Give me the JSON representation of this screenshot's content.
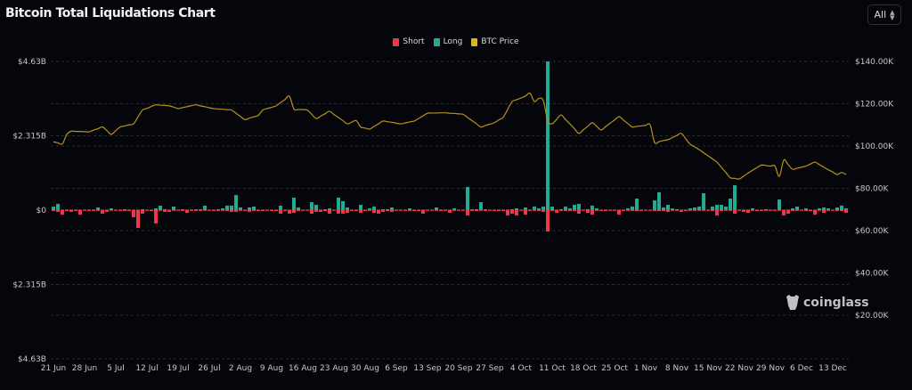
{
  "title": "Bitcoin Total Liquidations Chart",
  "range_select": {
    "value": "All"
  },
  "watermark": "coinglass",
  "colors": {
    "short": "#f23645",
    "long": "#22ab94",
    "price": "#b8921a",
    "background": "#05060b",
    "grid": "#2a2c33"
  },
  "legend": [
    {
      "label": "Short",
      "color": "#f23645"
    },
    {
      "label": "Long",
      "color": "#22ab94"
    },
    {
      "label": "BTC Price",
      "color": "#e6b10c"
    }
  ],
  "chart_data": {
    "type": "bar",
    "title": "Bitcoin Total Liquidations Chart",
    "x_tick_labels": [
      "21 Jun",
      "28 Jun",
      "5 Jul",
      "12 Jul",
      "19 Jul",
      "26 Jul",
      "2 Aug",
      "9 Aug",
      "16 Aug",
      "23 Aug",
      "30 Aug",
      "6 Sep",
      "13 Sep",
      "20 Sep",
      "27 Sep",
      "4 Oct",
      "11 Oct",
      "18 Oct",
      "25 Oct",
      "1 Nov",
      "8 Nov",
      "15 Nov",
      "22 Nov",
      "29 Nov",
      "6 Dec",
      "13 Dec"
    ],
    "left_axis": {
      "ticks": [
        "$4.63B",
        "$2.315B",
        "$0",
        "$2.315B",
        "$4.63B"
      ],
      "range": [
        -4630,
        4630
      ]
    },
    "right_axis": {
      "ticks": [
        "$140.00K",
        "$120.00K",
        "$100.00K",
        "$80.00K",
        "$60.00K",
        "$40.00K",
        "$20.00K"
      ],
      "range": [
        20,
        140
      ]
    },
    "grid": true,
    "legend_position": "top-center",
    "series": [
      {
        "name": "Long",
        "type": "bar",
        "values": [
          110,
          195,
          15,
          15,
          15,
          15,
          15,
          15,
          15,
          15,
          83,
          15,
          15,
          55,
          15,
          15,
          28,
          15,
          15,
          15,
          28,
          15,
          15,
          55,
          140,
          28,
          15,
          110,
          15,
          28,
          15,
          15,
          28,
          28,
          140,
          15,
          15,
          28,
          55,
          140,
          140,
          470,
          83,
          15,
          83,
          110,
          15,
          15,
          15,
          15,
          15,
          140,
          15,
          15,
          390,
          83,
          15,
          15,
          250,
          165,
          15,
          28,
          55,
          15,
          390,
          280,
          83,
          15,
          15,
          165,
          15,
          55,
          110,
          15,
          28,
          28,
          83,
          15,
          15,
          15,
          55,
          15,
          15,
          15,
          15,
          15,
          83,
          15,
          15,
          15,
          55,
          15,
          15,
          720,
          28,
          28,
          250,
          28,
          15,
          15,
          15,
          15,
          15,
          28,
          55,
          15,
          83,
          15,
          110,
          55,
          110,
          4630,
          110,
          15,
          28,
          110,
          55,
          165,
          195,
          15,
          28,
          140,
          55,
          15,
          15,
          15,
          15,
          15,
          15,
          55,
          110,
          360,
          15,
          15,
          15,
          305,
          555,
          83,
          165,
          55,
          28,
          15,
          15,
          55,
          83,
          110,
          525,
          15,
          110,
          165,
          165,
          110,
          360,
          775,
          15,
          15,
          15,
          55,
          15,
          15,
          28,
          15,
          15,
          330,
          15,
          15,
          55,
          110,
          15,
          55,
          15,
          15,
          55,
          83,
          55,
          15,
          83,
          140,
          55
        ]
      },
      {
        "name": "Short",
        "type": "bar",
        "values": [
          28,
          55,
          140,
          28,
          55,
          28,
          140,
          15,
          28,
          28,
          15,
          110,
          55,
          15,
          15,
          28,
          15,
          28,
          220,
          555,
          110,
          15,
          28,
          415,
          15,
          55,
          55,
          15,
          15,
          15,
          83,
          28,
          15,
          15,
          15,
          15,
          28,
          15,
          15,
          28,
          55,
          55,
          15,
          28,
          55,
          28,
          28,
          28,
          15,
          28,
          28,
          110,
          28,
          110,
          83,
          28,
          15,
          15,
          110,
          55,
          55,
          28,
          110,
          15,
          110,
          110,
          83,
          28,
          28,
          83,
          28,
          15,
          83,
          110,
          55,
          28,
          55,
          15,
          15,
          28,
          28,
          28,
          28,
          110,
          15,
          15,
          15,
          28,
          28,
          83,
          15,
          15,
          15,
          165,
          15,
          28,
          15,
          15,
          15,
          28,
          28,
          28,
          165,
          110,
          165,
          15,
          140,
          28,
          15,
          28,
          55,
          665,
          28,
          83,
          15,
          28,
          28,
          28,
          110,
          15,
          83,
          140,
          15,
          28,
          28,
          15,
          15,
          140,
          28,
          15,
          15,
          28,
          28,
          15,
          15,
          28,
          28,
          28,
          55,
          15,
          15,
          55,
          28,
          15,
          15,
          15,
          15,
          15,
          28,
          165,
          28,
          15,
          15,
          110,
          15,
          55,
          83,
          15,
          28,
          28,
          15,
          15,
          15,
          15,
          165,
          110,
          28,
          15,
          15,
          28,
          28,
          140,
          15,
          83,
          15,
          15,
          28,
          28,
          83
        ]
      },
      {
        "name": "BTC Price",
        "type": "line",
        "values": [
          102,
          101.5,
          101,
          105.5,
          107,
          106.9,
          106.9,
          106.8,
          106.7,
          107.5,
          108.2,
          109,
          107.3,
          105.5,
          107.3,
          109,
          109.5,
          110,
          110.5,
          113.8,
          117,
          117.8,
          118.7,
          119.5,
          119.3,
          119.2,
          119,
          118.4,
          117.7,
          118.2,
          118.6,
          119.1,
          119.5,
          119,
          118.6,
          118.1,
          117.7,
          117.5,
          117.4,
          117.2,
          117,
          115.5,
          114,
          112.5,
          113.2,
          113.8,
          114.5,
          117,
          117.7,
          118.3,
          119,
          120.5,
          122,
          123.5,
          117.5,
          117.3,
          117.2,
          117,
          115,
          113,
          114.1,
          115.3,
          116.4,
          114.9,
          113.5,
          112,
          110.5,
          111.3,
          112,
          109,
          108.5,
          108,
          109.3,
          110.5,
          111.8,
          111.5,
          111.2,
          110.8,
          110.5,
          110.9,
          111.4,
          111.8,
          113,
          114.3,
          115.5,
          115.6,
          115.6,
          115.7,
          115.7,
          115.5,
          115.4,
          115.2,
          115,
          113.5,
          112,
          110.5,
          109,
          109.7,
          110.3,
          111,
          112.3,
          113.6,
          117.3,
          121,
          121.9,
          122.7,
          123.6,
          125,
          121,
          122.5,
          121.5,
          112,
          110.5,
          112.6,
          114.7,
          112.5,
          110.4,
          108.2,
          106,
          107.7,
          109.3,
          111,
          109.3,
          107.6,
          109.2,
          110.8,
          112.3,
          113.9,
          112.3,
          110.6,
          109,
          109.3,
          109.5,
          109.8,
          110,
          101.7,
          102.1,
          102.6,
          103,
          104,
          105,
          106,
          103.4,
          100.8,
          99.6,
          98.3,
          96.8,
          95.4,
          93.9,
          92.4,
          89.9,
          87.5,
          85,
          84.7,
          84.4,
          85.8,
          87.2,
          88.6,
          89.8,
          91,
          90.8,
          90.5,
          90.6,
          85.7,
          93.3,
          91.2,
          89,
          89.5,
          90,
          90.5,
          91.5,
          92.4,
          91.2,
          90,
          88.8,
          87.7,
          86.5,
          87.5,
          86.5
        ]
      }
    ]
  }
}
